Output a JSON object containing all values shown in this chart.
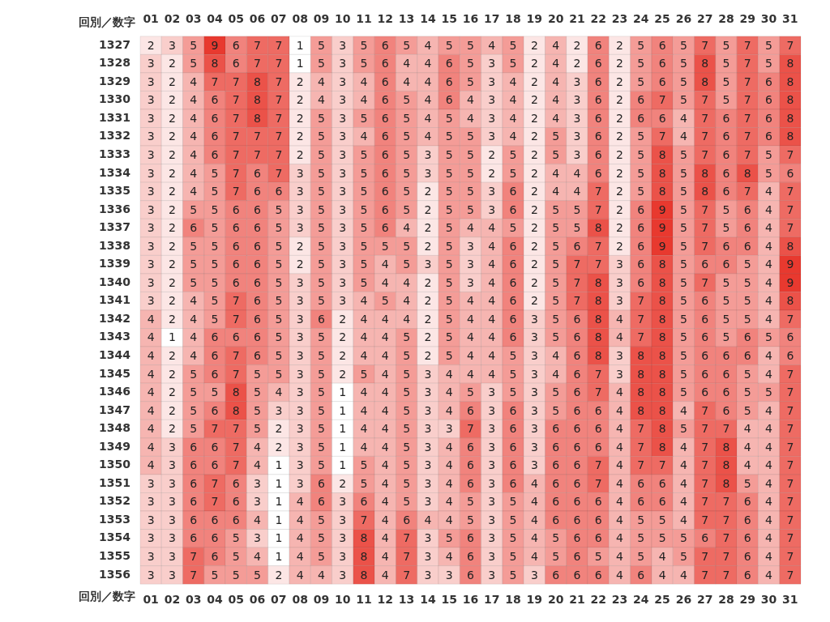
{
  "chart_data": {
    "type": "heatmap",
    "title": "回別／数字",
    "colors": [
      "#ffffff",
      "#e8392f"
    ],
    "data_labels": true,
    "categories": [
      "01",
      "02",
      "03",
      "04",
      "05",
      "06",
      "07",
      "08",
      "09",
      "10",
      "11",
      "12",
      "13",
      "14",
      "15",
      "16",
      "17",
      "18",
      "19",
      "20",
      "21",
      "22",
      "23",
      "24",
      "25",
      "26",
      "27",
      "28",
      "29",
      "30",
      "31"
    ],
    "y_categories": [
      "1327",
      "1328",
      "1329",
      "1330",
      "1331",
      "1332",
      "1333",
      "1334",
      "1335",
      "1336",
      "1337",
      "1338",
      "1339",
      "1340",
      "1341",
      "1342",
      "1343",
      "1344",
      "1345",
      "1346",
      "1347",
      "1348",
      "1349",
      "1350",
      "1351",
      "1352",
      "1353",
      "1354",
      "1355",
      "1356"
    ],
    "cells": [
      [
        2,
        3,
        5,
        9,
        6,
        7,
        7,
        1,
        5,
        3,
        5,
        6,
        5,
        4,
        5,
        5,
        4,
        5,
        2,
        4,
        2,
        6,
        2,
        5,
        6,
        5,
        7,
        5,
        7,
        5,
        7
      ],
      [
        3,
        2,
        5,
        8,
        6,
        7,
        7,
        1,
        5,
        3,
        5,
        6,
        4,
        4,
        6,
        5,
        3,
        5,
        2,
        4,
        2,
        6,
        2,
        5,
        6,
        5,
        8,
        5,
        7,
        5,
        8
      ],
      [
        3,
        2,
        4,
        7,
        7,
        8,
        7,
        2,
        4,
        3,
        4,
        6,
        4,
        4,
        6,
        5,
        3,
        4,
        2,
        4,
        3,
        6,
        2,
        5,
        6,
        5,
        8,
        5,
        7,
        6,
        8
      ],
      [
        3,
        2,
        4,
        6,
        7,
        8,
        7,
        2,
        4,
        3,
        4,
        6,
        5,
        4,
        6,
        4,
        3,
        4,
        2,
        4,
        3,
        6,
        2,
        6,
        7,
        5,
        7,
        5,
        7,
        6,
        8
      ],
      [
        3,
        2,
        4,
        6,
        7,
        8,
        7,
        2,
        5,
        3,
        5,
        6,
        5,
        4,
        5,
        4,
        3,
        4,
        2,
        4,
        3,
        6,
        2,
        6,
        6,
        4,
        7,
        6,
        7,
        6,
        8
      ],
      [
        3,
        2,
        4,
        6,
        7,
        7,
        7,
        2,
        5,
        3,
        4,
        6,
        5,
        4,
        5,
        5,
        3,
        4,
        2,
        5,
        3,
        6,
        2,
        5,
        7,
        4,
        7,
        6,
        7,
        6,
        8
      ],
      [
        3,
        2,
        4,
        6,
        7,
        7,
        7,
        2,
        5,
        3,
        5,
        6,
        5,
        3,
        5,
        5,
        2,
        5,
        2,
        5,
        3,
        6,
        2,
        5,
        8,
        5,
        7,
        6,
        7,
        5,
        7
      ],
      [
        3,
        2,
        4,
        5,
        7,
        6,
        7,
        3,
        5,
        3,
        5,
        6,
        5,
        3,
        5,
        5,
        2,
        5,
        2,
        4,
        4,
        6,
        2,
        5,
        8,
        5,
        8,
        6,
        8,
        5,
        6
      ],
      [
        3,
        2,
        4,
        5,
        7,
        6,
        6,
        3,
        5,
        3,
        5,
        6,
        5,
        2,
        5,
        5,
        3,
        6,
        2,
        4,
        4,
        7,
        2,
        5,
        8,
        5,
        8,
        6,
        7,
        4,
        7
      ],
      [
        3,
        2,
        5,
        5,
        6,
        6,
        5,
        3,
        5,
        3,
        5,
        6,
        5,
        2,
        5,
        5,
        3,
        6,
        2,
        5,
        5,
        7,
        2,
        6,
        9,
        5,
        7,
        5,
        6,
        4,
        7
      ],
      [
        3,
        2,
        6,
        5,
        6,
        6,
        5,
        3,
        5,
        3,
        5,
        6,
        4,
        2,
        5,
        4,
        4,
        5,
        2,
        5,
        5,
        8,
        2,
        6,
        9,
        5,
        7,
        5,
        6,
        4,
        7
      ],
      [
        3,
        2,
        5,
        5,
        6,
        6,
        5,
        2,
        5,
        3,
        5,
        5,
        5,
        2,
        5,
        3,
        4,
        6,
        2,
        5,
        6,
        7,
        2,
        6,
        9,
        5,
        7,
        6,
        6,
        4,
        8
      ],
      [
        3,
        2,
        5,
        5,
        6,
        6,
        5,
        2,
        5,
        3,
        5,
        4,
        5,
        3,
        5,
        3,
        4,
        6,
        2,
        5,
        7,
        7,
        3,
        6,
        8,
        5,
        6,
        6,
        5,
        4,
        9
      ],
      [
        3,
        2,
        5,
        5,
        6,
        6,
        5,
        3,
        5,
        3,
        5,
        4,
        4,
        2,
        5,
        3,
        4,
        6,
        2,
        5,
        7,
        8,
        3,
        6,
        8,
        5,
        7,
        5,
        5,
        4,
        9
      ],
      [
        3,
        2,
        4,
        5,
        7,
        6,
        5,
        3,
        5,
        3,
        4,
        5,
        4,
        2,
        5,
        4,
        4,
        6,
        2,
        5,
        7,
        8,
        3,
        7,
        8,
        5,
        6,
        5,
        5,
        4,
        8
      ],
      [
        4,
        2,
        4,
        5,
        7,
        6,
        5,
        3,
        6,
        2,
        4,
        4,
        4,
        2,
        5,
        4,
        4,
        6,
        3,
        5,
        6,
        8,
        4,
        7,
        8,
        5,
        6,
        5,
        5,
        4,
        7
      ],
      [
        4,
        1,
        4,
        6,
        6,
        6,
        5,
        3,
        5,
        2,
        4,
        4,
        5,
        2,
        5,
        4,
        4,
        6,
        3,
        5,
        6,
        8,
        4,
        7,
        8,
        5,
        6,
        5,
        6,
        5,
        6
      ],
      [
        4,
        2,
        4,
        6,
        7,
        6,
        5,
        3,
        5,
        2,
        4,
        4,
        5,
        2,
        5,
        4,
        4,
        5,
        3,
        4,
        6,
        8,
        3,
        8,
        8,
        5,
        6,
        6,
        6,
        4,
        6
      ],
      [
        4,
        2,
        5,
        6,
        7,
        5,
        5,
        3,
        5,
        2,
        5,
        4,
        5,
        3,
        4,
        4,
        4,
        5,
        3,
        4,
        6,
        7,
        3,
        8,
        8,
        5,
        6,
        6,
        5,
        4,
        7
      ],
      [
        4,
        2,
        5,
        5,
        8,
        5,
        4,
        3,
        5,
        1,
        4,
        4,
        5,
        3,
        4,
        5,
        3,
        5,
        3,
        5,
        6,
        7,
        4,
        8,
        8,
        5,
        6,
        6,
        5,
        5,
        7
      ],
      [
        4,
        2,
        5,
        6,
        8,
        5,
        3,
        3,
        5,
        1,
        4,
        4,
        5,
        3,
        4,
        6,
        3,
        6,
        3,
        5,
        6,
        6,
        4,
        8,
        8,
        4,
        7,
        6,
        5,
        4,
        7
      ],
      [
        4,
        2,
        5,
        7,
        7,
        5,
        2,
        3,
        5,
        1,
        4,
        4,
        5,
        3,
        3,
        7,
        3,
        6,
        3,
        6,
        6,
        6,
        4,
        7,
        8,
        5,
        7,
        7,
        4,
        4,
        7
      ],
      [
        4,
        3,
        6,
        6,
        7,
        4,
        2,
        3,
        5,
        1,
        4,
        4,
        5,
        3,
        4,
        6,
        3,
        6,
        3,
        6,
        6,
        6,
        4,
        7,
        8,
        4,
        7,
        8,
        4,
        4,
        7
      ],
      [
        4,
        3,
        6,
        6,
        7,
        4,
        1,
        3,
        5,
        1,
        5,
        4,
        5,
        3,
        4,
        6,
        3,
        6,
        3,
        6,
        6,
        7,
        4,
        7,
        7,
        4,
        7,
        8,
        4,
        4,
        7
      ],
      [
        3,
        3,
        6,
        7,
        6,
        3,
        1,
        3,
        6,
        2,
        5,
        4,
        5,
        3,
        4,
        6,
        3,
        6,
        4,
        6,
        6,
        7,
        4,
        6,
        6,
        4,
        7,
        8,
        5,
        4,
        7
      ],
      [
        3,
        3,
        6,
        7,
        6,
        3,
        1,
        4,
        6,
        3,
        6,
        4,
        5,
        3,
        4,
        5,
        3,
        5,
        4,
        6,
        6,
        6,
        4,
        6,
        6,
        4,
        7,
        7,
        6,
        4,
        7
      ],
      [
        3,
        3,
        6,
        6,
        6,
        4,
        1,
        4,
        5,
        3,
        7,
        4,
        6,
        4,
        4,
        5,
        3,
        5,
        4,
        6,
        6,
        6,
        4,
        5,
        5,
        4,
        7,
        7,
        6,
        4,
        7
      ],
      [
        3,
        3,
        6,
        6,
        5,
        3,
        1,
        4,
        5,
        3,
        8,
        4,
        7,
        3,
        5,
        6,
        3,
        5,
        4,
        5,
        6,
        6,
        4,
        5,
        5,
        5,
        6,
        7,
        6,
        4,
        7
      ],
      [
        3,
        3,
        7,
        6,
        5,
        4,
        1,
        4,
        5,
        3,
        8,
        4,
        7,
        3,
        4,
        6,
        3,
        5,
        4,
        5,
        6,
        5,
        4,
        5,
        4,
        5,
        7,
        7,
        6,
        4,
        7
      ],
      [
        3,
        3,
        7,
        5,
        5,
        5,
        2,
        4,
        4,
        3,
        8,
        4,
        7,
        3,
        3,
        6,
        3,
        5,
        3,
        6,
        6,
        6,
        4,
        6,
        4,
        4,
        7,
        7,
        6,
        4,
        7
      ]
    ]
  }
}
